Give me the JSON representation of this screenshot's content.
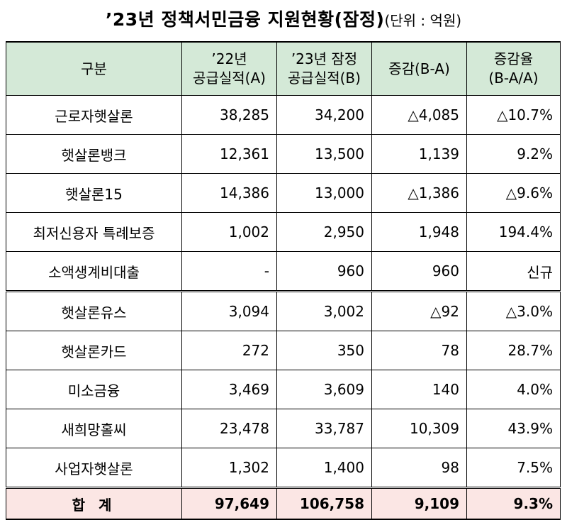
{
  "title": {
    "main": "’23년 정책서민금융 지원현황(잠정)",
    "unit": "(단위 : 억원)"
  },
  "headers": [
    [
      "구분"
    ],
    [
      "’22년",
      "공급실적(A)"
    ],
    [
      "’23년 잠정",
      "공급실적(B)"
    ],
    [
      "증감(B-A)"
    ],
    [
      "증감율",
      "(B-A/A)"
    ]
  ],
  "rows": [
    {
      "name": "근로자햇살론",
      "a": "38,285",
      "b": "34,200",
      "diff": "△4,085",
      "rate": "△10.7%"
    },
    {
      "name": "햇살론뱅크",
      "a": "12,361",
      "b": "13,500",
      "diff": "1,139",
      "rate": "9.2%"
    },
    {
      "name": "햇살론15",
      "a": "14,386",
      "b": "13,000",
      "diff": "△1,386",
      "rate": "△9.6%"
    },
    {
      "name": "최저신용자 특례보증",
      "a": "1,002",
      "b": "2,950",
      "diff": "1,948",
      "rate": "194.4%"
    },
    {
      "name": "소액생계비대출",
      "a": "-",
      "b": "960",
      "diff": "960",
      "rate": "신규"
    },
    {
      "name": "햇살론유스",
      "a": "3,094",
      "b": "3,002",
      "diff": "△92",
      "rate": "△3.0%"
    },
    {
      "name": "햇살론카드",
      "a": "272",
      "b": "350",
      "diff": "78",
      "rate": "28.7%"
    },
    {
      "name": "미소금융",
      "a": "3,469",
      "b": "3,609",
      "diff": "140",
      "rate": "4.0%"
    },
    {
      "name": "새희망홀씨",
      "a": "23,478",
      "b": "33,787",
      "diff": "10,309",
      "rate": "43.9%"
    },
    {
      "name": "사업자햇살론",
      "a": "1,302",
      "b": "1,400",
      "diff": "98",
      "rate": "7.5%"
    }
  ],
  "total": {
    "name": "합 계",
    "a": "97,649",
    "b": "106,758",
    "diff": "9,109",
    "rate": "9.3%"
  },
  "colors": {
    "header_bg": "#d4e9d7",
    "total_bg": "#fbe6e4"
  }
}
